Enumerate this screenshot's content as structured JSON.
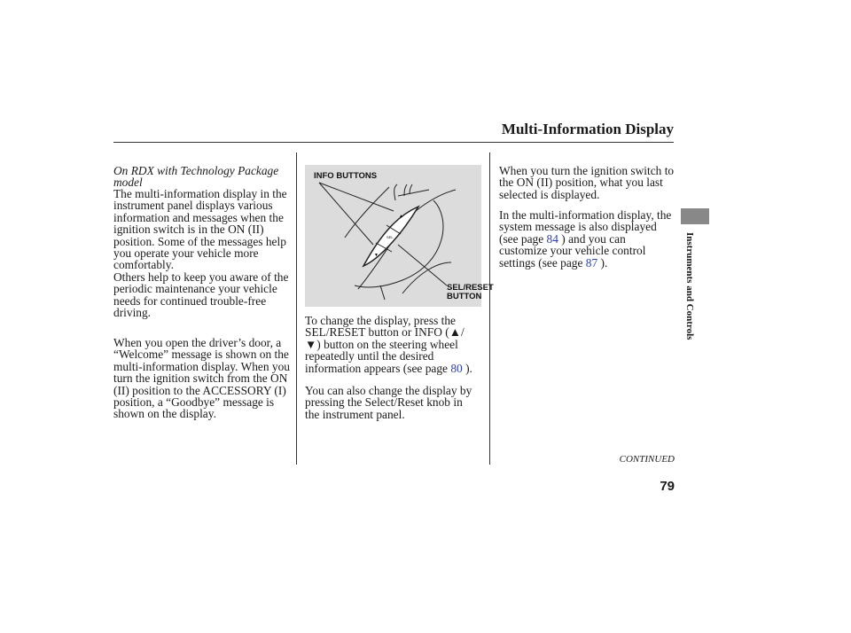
{
  "header": {
    "title": "Multi-Information Display"
  },
  "sidebar": {
    "section": "Instruments and Controls"
  },
  "left": {
    "model_note": "On RDX with Technology Package\nmodel",
    "para1": "The multi-information display in the\ninstrument panel displays various\ninformation and messages when the\nignition switch is in the ON (II)\nposition. Some of the messages help\nyou operate your vehicle more\ncomfortably.\nOthers help to keep you aware of the\nperiodic maintenance your vehicle\nneeds for continued trouble-free\ndriving.",
    "para2": "When you open the driver’s door, a\n“Welcome” message is shown on the\nmulti-information display. When you\nturn the ignition switch from the ON\n(II) position to the ACCESSORY (I)\nposition, a “Goodbye” message is\nshown on the display."
  },
  "figure": {
    "label_info": "INFO BUTTONS",
    "label_sel": "SEL/RESET\nBUTTON"
  },
  "middle": {
    "para1_a": "To change the display, press the\nSEL/RESET button or INFO (",
    "up_glyph": "▲",
    "para1_b": "/\n",
    "down_glyph": "▼",
    "para1_c": ") button on the steering wheel\nrepeatedly until the desired\ninformation appears (see page ",
    "para1_link": "80",
    "para1_d": " ).",
    "para2": "You can also change the display by\npressing the Select/Reset knob in\nthe instrument panel."
  },
  "right": {
    "para1": "When you turn the ignition switch to\nthe ON (II) position, what you last\nselected is displayed.",
    "para2_a": "In the multi-information display, the\nsystem message is also displayed\n(see page ",
    "para2_link1": "84",
    "para2_b": " ) and you can\ncustomize your vehicle control\nsettings (see page ",
    "para2_link2": "87",
    "para2_c": " )."
  },
  "footer": {
    "continued": "CONTINUED",
    "page_number": "79"
  }
}
